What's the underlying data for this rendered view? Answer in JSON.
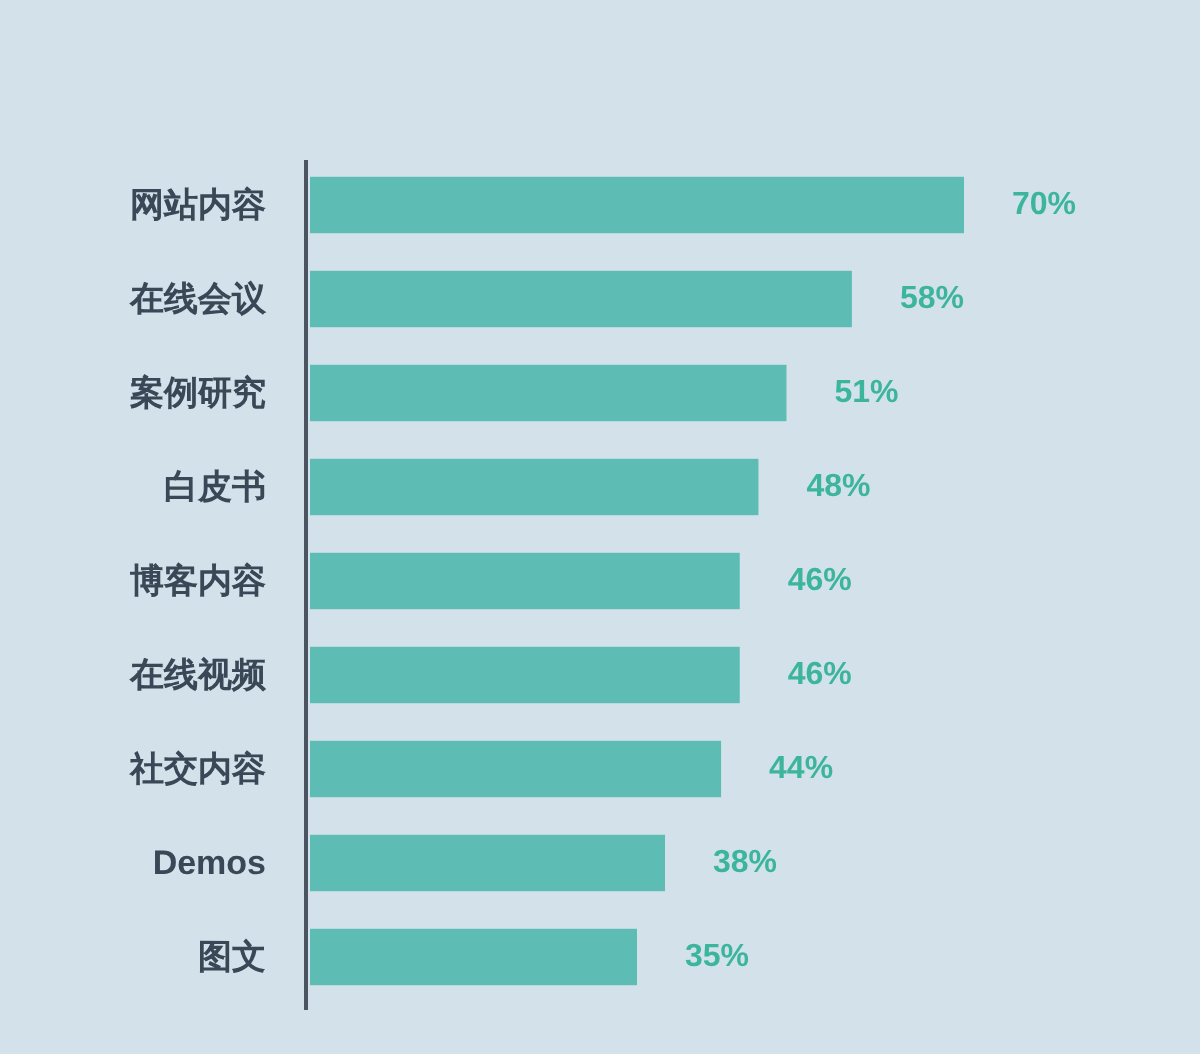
{
  "chart_data": {
    "type": "bar",
    "orientation": "horizontal",
    "categories": [
      "网站内容",
      "在线会议",
      "案例研究",
      "白皮书",
      "博客内容",
      "在线视频",
      "社交内容",
      "Demos",
      "图文"
    ],
    "values": [
      70,
      58,
      51,
      48,
      46,
      46,
      44,
      38,
      35
    ],
    "value_labels": [
      "70%",
      "58%",
      "51%",
      "48%",
      "46%",
      "46%",
      "44%",
      "38%",
      "35%"
    ],
    "color": "#5dbdb4"
  }
}
